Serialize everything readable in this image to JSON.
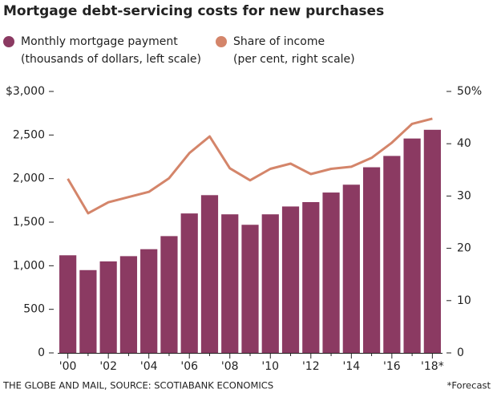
{
  "chart_data": {
    "type": "bar_line",
    "title": "Mortgage debt-servicing costs for new purchases",
    "categories": [
      "'00",
      null,
      "'02",
      null,
      "'04",
      null,
      "'06",
      null,
      "'08",
      null,
      "'10",
      null,
      "'12",
      null,
      "'14",
      null,
      "'16",
      null,
      "'18*"
    ],
    "series": [
      {
        "name": "Monthly mortgage payment",
        "name_note": "(thousands of dollars, left scale)",
        "color": "#8b3a62",
        "values": [
          1120,
          950,
          1050,
          1110,
          1190,
          1340,
          1600,
          1810,
          1590,
          1470,
          1590,
          1680,
          1730,
          1840,
          1930,
          2130,
          2260,
          2460,
          2560
        ]
      },
      {
        "name": "Share of income",
        "name_note": "(per cent, right scale)",
        "color": "#d4856a",
        "axis": "y2",
        "values": [
          33.3,
          26.7,
          28.8,
          29.8,
          30.8,
          33.4,
          38.2,
          41.4,
          35.3,
          33.0,
          35.2,
          36.2,
          34.2,
          35.2,
          35.6,
          37.3,
          40.2,
          43.8,
          44.8
        ]
      }
    ],
    "ylim": [
      0,
      3000
    ],
    "yticks": [
      0,
      {
        "value": 500,
        "label": "500"
      },
      {
        "value": 1000,
        "label": "1,000"
      },
      {
        "value": 1500,
        "label": "1,500"
      },
      {
        "value": 2000,
        "label": "2,000"
      },
      {
        "value": 2500,
        "label": "2,500"
      },
      {
        "value": 3000,
        "label": "$3,000"
      }
    ],
    "y2lim": [
      0,
      50
    ],
    "y2ticks": [
      0,
      10,
      20,
      30,
      40,
      {
        "value": 50,
        "label": "50%"
      }
    ],
    "source": "THE GLOBE AND MAIL, SOURCE: SCOTIABANK ECONOMICS",
    "note": "*Forecast"
  }
}
